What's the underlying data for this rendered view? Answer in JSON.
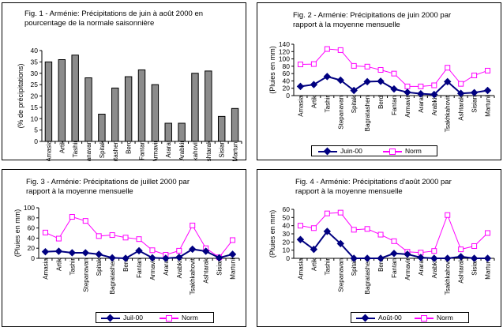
{
  "colors": {
    "juin": "#000080",
    "norm": "#ff00ff",
    "bar": "#8c8c8c",
    "panel_border": "#000000"
  },
  "chart_data": [
    {
      "id": "fig1",
      "type": "bar",
      "title": "Fig. 1 - Arménie: Précipitations de juin à août 2000 en pourcentage de la normale saisonnière",
      "title_lines": [
        "Fig. 1 - Arménie: Précipitations de juin à août 2000 en",
        "pourcentage de la normale saisonnière"
      ],
      "ylabel": "(% de précipitations)",
      "ylim": [
        0,
        40
      ],
      "yticks": [
        0,
        5,
        10,
        15,
        20,
        25,
        30,
        35,
        40
      ],
      "categories": [
        "Amasia",
        "Artik",
        "Tashir",
        "Stepanavan",
        "Spitak",
        "Bagratashen",
        "Berd",
        "Fantan",
        "Armavir",
        "Ararat",
        "Arabkir",
        "Tsakhkahovit",
        "Ashtarak",
        "Sisian",
        "Martuni"
      ],
      "values": [
        35,
        36,
        38,
        28,
        12,
        23.5,
        28.5,
        31.5,
        25,
        8,
        8,
        30,
        31,
        11,
        14.5
      ]
    },
    {
      "id": "fig2",
      "type": "line",
      "title": "Fig. 2 - Arménie: Précipitations de juin 2000 par rapport à la moyenne mensuelle",
      "title_lines": [
        "Fig. 2 - Arménie: Précipitations de juin 2000 par",
        "rapport à la moyenne mensuelle"
      ],
      "ylabel": "(Pluies en mm)",
      "ylim": [
        0,
        140
      ],
      "yticks": [
        0,
        20,
        40,
        60,
        80,
        100,
        120,
        140
      ],
      "categories": [
        "Amasia",
        "Artik",
        "Tashir",
        "Stepanavan",
        "Spitak",
        "Bagratashen",
        "Berd",
        "Fantan",
        "Armavir",
        "Ararat",
        "Arabkir",
        "Tsakhkahovit",
        "Ashtarak",
        "Sisian",
        "Martuni"
      ],
      "series": [
        {
          "name": "Juin-00",
          "values": [
            25,
            30,
            52,
            42,
            14,
            38,
            39,
            18,
            9,
            5,
            3,
            38,
            6,
            8,
            14
          ]
        },
        {
          "name": "Norm",
          "values": [
            85,
            86,
            127,
            124,
            81,
            79,
            70,
            60,
            25,
            25,
            28,
            76,
            32,
            55,
            68
          ]
        }
      ]
    },
    {
      "id": "fig3",
      "type": "line",
      "title": "Fig. 3 - Arménie: Précipitations de juillet 2000 par rapport à la moyenne mensuelle",
      "title_lines": [
        "Fig. 3 - Arménie: Précipitations de juillet 2000 par",
        "rapport à la moyenne mensuelle"
      ],
      "ylabel": "(Pluies en mm)",
      "ylim": [
        0,
        100
      ],
      "yticks": [
        0,
        20,
        40,
        60,
        80,
        100
      ],
      "categories": [
        "Amasia",
        "Artik",
        "Tashir",
        "Stepanavan",
        "Spitak",
        "Bagratashen",
        "Berd",
        "Fantan",
        "Armavir",
        "Ararat",
        "Arabkir",
        "Tsakhkahovit",
        "Ashtarak",
        "Sisian",
        "Martuni"
      ],
      "series": [
        {
          "name": "Juil-00",
          "values": [
            13,
            14,
            11,
            11,
            8,
            1,
            0,
            15,
            1,
            0,
            2,
            18,
            14,
            1,
            8
          ]
        },
        {
          "name": "Norm",
          "values": [
            51,
            39,
            82,
            74,
            44,
            46,
            41,
            38,
            16,
            7,
            15,
            65,
            20,
            2,
            36
          ]
        }
      ]
    },
    {
      "id": "fig4",
      "type": "line",
      "title": "Fig. 4 - Arménie: Précipitations d'août 2000 par rapport à la moyenne mensuelle",
      "title_lines": [
        "Fig. 4 - Arménie: Précipitations d'août 2000 par",
        "rapport à la moyenne mensuelle"
      ],
      "ylabel": "(Pluies en mm)",
      "ylim": [
        0,
        60
      ],
      "yticks": [
        0,
        10,
        20,
        30,
        40,
        50,
        60
      ],
      "categories": [
        "Amasia",
        "Artik",
        "Tashir",
        "Stepanavan",
        "Spitak",
        "Bagratashen",
        "Berd",
        "Fantan",
        "Armavir",
        "Ararat",
        "Arabkir",
        "Tsakhkahovit",
        "Ashtarak",
        "Sisian",
        "Martuni"
      ],
      "series": [
        {
          "name": "Août-00",
          "values": [
            23,
            11,
            33,
            18,
            0,
            0,
            0,
            6,
            5,
            1,
            0,
            0,
            2,
            0,
            0
          ]
        },
        {
          "name": "Norm",
          "values": [
            40,
            37,
            55,
            56,
            35,
            36,
            29,
            21,
            8,
            7,
            9,
            53,
            11,
            15,
            31
          ]
        }
      ]
    }
  ]
}
